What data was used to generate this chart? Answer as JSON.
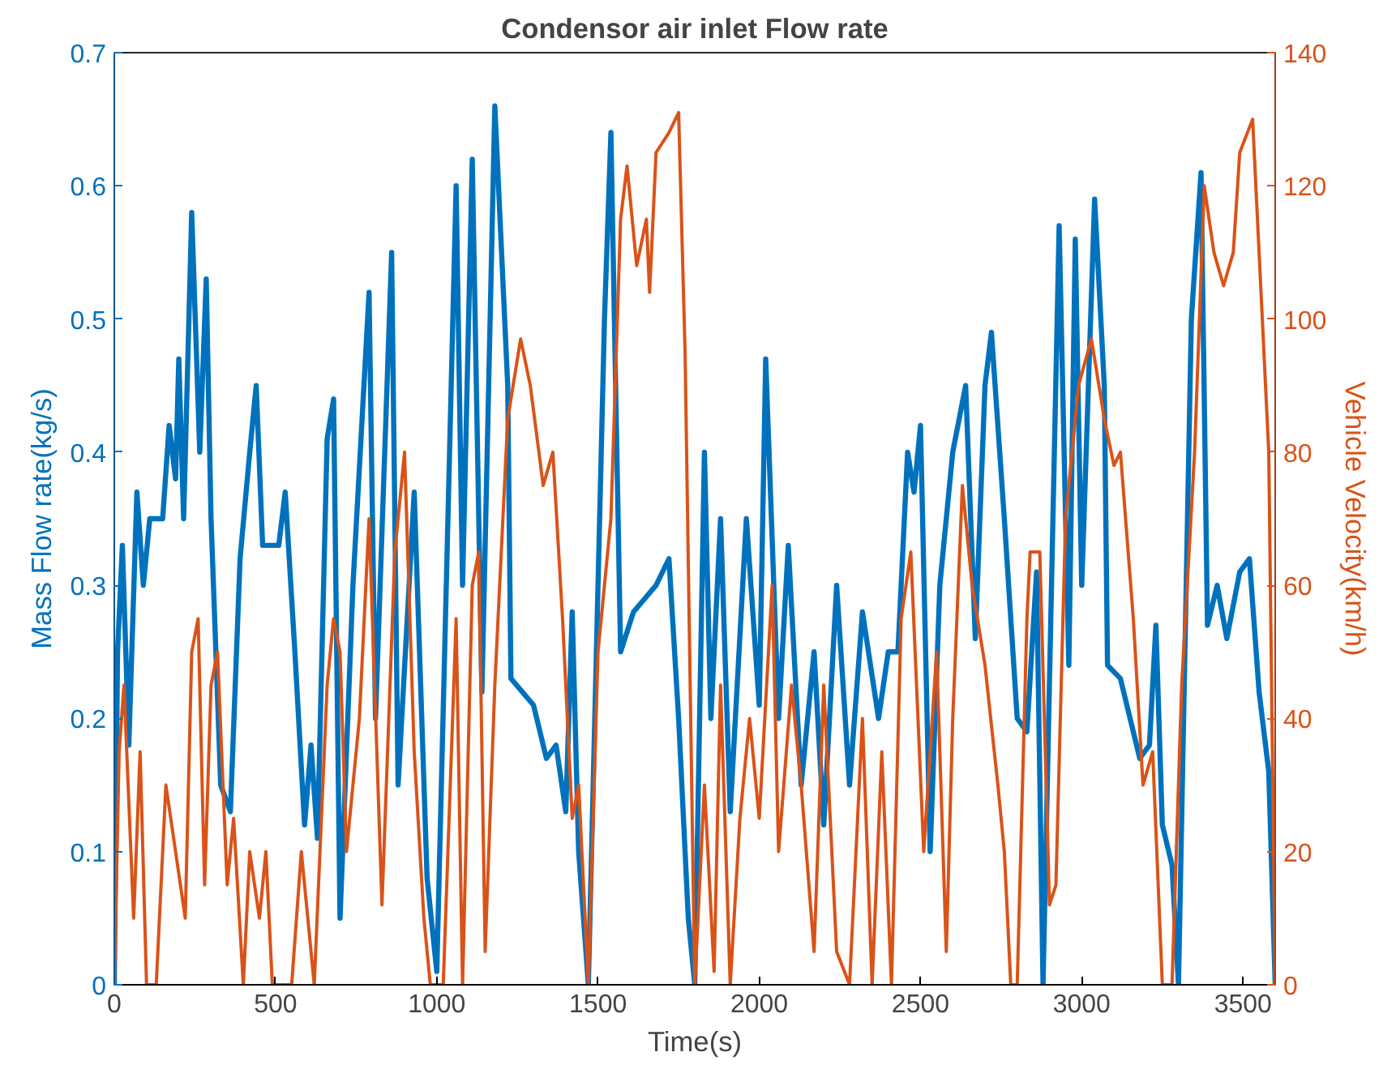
{
  "chart_data": {
    "type": "line",
    "title": "Condensor air inlet Flow rate",
    "xlabel": "Time(s)",
    "ylabel": "Mass Flow rate(kg/s)",
    "y2label": "Vehicle Velocity(km/h)",
    "xlim": [
      0,
      3600
    ],
    "xticks": [
      0,
      500,
      1000,
      1500,
      2000,
      2500,
      3000,
      3500
    ],
    "ylim": [
      0,
      0.7
    ],
    "yticks": [
      0,
      0.1,
      0.2,
      0.3,
      0.4,
      0.5,
      0.6,
      0.7
    ],
    "y2lim": [
      0,
      140
    ],
    "y2ticks": [
      0,
      20,
      40,
      60,
      80,
      100,
      120,
      140
    ],
    "grid": false,
    "series": [
      {
        "color": "#0072bd",
        "x": [
          0,
          10,
          25,
          45,
          70,
          90,
          110,
          150,
          170,
          190,
          200,
          215,
          240,
          265,
          285,
          300,
          330,
          360,
          390,
          420,
          440,
          460,
          510,
          530,
          560,
          590,
          610,
          630,
          660,
          680,
          700,
          740,
          790,
          810,
          860,
          880,
          930,
          970,
          1000,
          1060,
          1080,
          1110,
          1140,
          1180,
          1220,
          1230,
          1300,
          1340,
          1370,
          1400,
          1420,
          1440,
          1470,
          1520,
          1540,
          1570,
          1610,
          1680,
          1720,
          1750,
          1780,
          1800,
          1830,
          1850,
          1880,
          1910,
          1960,
          2000,
          2020,
          2060,
          2090,
          2130,
          2170,
          2200,
          2240,
          2280,
          2320,
          2370,
          2400,
          2430,
          2460,
          2480,
          2500,
          2530,
          2560,
          2600,
          2640,
          2670,
          2700,
          2720,
          2760,
          2800,
          2830,
          2860,
          2880,
          2930,
          2960,
          2980,
          3000,
          3040,
          3070,
          3080,
          3120,
          3180,
          3210,
          3230,
          3250,
          3280,
          3300,
          3340,
          3370,
          3390,
          3420,
          3450,
          3490,
          3520,
          3550,
          3580,
          3600
        ],
        "values": [
          0,
          0.25,
          0.33,
          0.18,
          0.37,
          0.3,
          0.35,
          0.35,
          0.42,
          0.38,
          0.47,
          0.35,
          0.58,
          0.4,
          0.53,
          0.35,
          0.15,
          0.13,
          0.32,
          0.4,
          0.45,
          0.33,
          0.33,
          0.37,
          0.25,
          0.12,
          0.18,
          0.11,
          0.41,
          0.44,
          0.05,
          0.3,
          0.52,
          0.2,
          0.55,
          0.15,
          0.37,
          0.08,
          0.01,
          0.6,
          0.3,
          0.62,
          0.22,
          0.66,
          0.45,
          0.23,
          0.21,
          0.17,
          0.18,
          0.13,
          0.28,
          0.1,
          0,
          0.5,
          0.64,
          0.25,
          0.28,
          0.3,
          0.32,
          0.2,
          0.05,
          0,
          0.4,
          0.2,
          0.35,
          0.13,
          0.35,
          0.21,
          0.47,
          0.2,
          0.33,
          0.15,
          0.25,
          0.12,
          0.3,
          0.15,
          0.28,
          0.2,
          0.25,
          0.25,
          0.4,
          0.37,
          0.42,
          0.1,
          0.3,
          0.4,
          0.45,
          0.26,
          0.45,
          0.49,
          0.35,
          0.2,
          0.19,
          0.31,
          0,
          0.57,
          0.24,
          0.56,
          0.3,
          0.59,
          0.45,
          0.24,
          0.23,
          0.17,
          0.18,
          0.27,
          0.12,
          0.09,
          0,
          0.5,
          0.61,
          0.27,
          0.3,
          0.26,
          0.31,
          0.32,
          0.22,
          0.16,
          0
        ]
      },
      {
        "color": "#d95319",
        "axis": "y2",
        "x": [
          0,
          15,
          30,
          60,
          80,
          100,
          130,
          160,
          190,
          220,
          240,
          260,
          280,
          300,
          320,
          350,
          370,
          400,
          420,
          450,
          470,
          490,
          520,
          550,
          580,
          600,
          620,
          660,
          680,
          700,
          720,
          760,
          790,
          830,
          870,
          900,
          930,
          960,
          980,
          1020,
          1060,
          1080,
          1110,
          1130,
          1150,
          1180,
          1220,
          1260,
          1290,
          1330,
          1360,
          1390,
          1420,
          1440,
          1470,
          1500,
          1520,
          1540,
          1570,
          1590,
          1620,
          1650,
          1660,
          1680,
          1720,
          1750,
          1770,
          1800,
          1830,
          1860,
          1880,
          1910,
          1940,
          1970,
          2000,
          2040,
          2060,
          2100,
          2130,
          2170,
          2200,
          2240,
          2280,
          2320,
          2350,
          2380,
          2410,
          2440,
          2470,
          2510,
          2550,
          2580,
          2600,
          2630,
          2660,
          2700,
          2740,
          2760,
          2780,
          2800,
          2830,
          2840,
          2870,
          2900,
          2920,
          2950,
          2990,
          3030,
          3070,
          3100,
          3120,
          3160,
          3190,
          3220,
          3250,
          3280,
          3310,
          3350,
          3380,
          3410,
          3440,
          3470,
          3490,
          3530,
          3550,
          3580,
          3600
        ],
        "values": [
          0,
          35,
          45,
          10,
          35,
          0,
          0,
          30,
          20,
          10,
          50,
          55,
          15,
          45,
          50,
          15,
          25,
          0,
          20,
          10,
          20,
          0,
          0,
          0,
          20,
          10,
          0,
          45,
          55,
          50,
          20,
          40,
          70,
          12,
          65,
          80,
          35,
          10,
          0,
          0,
          55,
          0,
          60,
          65,
          5,
          45,
          85,
          97,
          90,
          75,
          80,
          55,
          25,
          30,
          0,
          50,
          60,
          70,
          115,
          123,
          108,
          115,
          104,
          125,
          128,
          131,
          95,
          0,
          30,
          2,
          45,
          0,
          25,
          40,
          25,
          60,
          20,
          45,
          30,
          5,
          45,
          5,
          0,
          40,
          0,
          35,
          0,
          55,
          65,
          20,
          50,
          5,
          40,
          75,
          60,
          48,
          30,
          20,
          0,
          0,
          55,
          65,
          65,
          12,
          15,
          70,
          90,
          97,
          85,
          78,
          80,
          55,
          30,
          35,
          0,
          0,
          45,
          80,
          120,
          110,
          105,
          110,
          125,
          130,
          110,
          80,
          0
        ]
      }
    ]
  }
}
